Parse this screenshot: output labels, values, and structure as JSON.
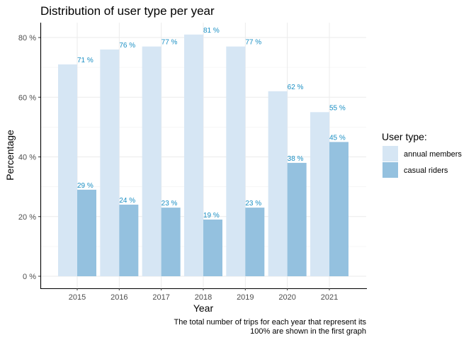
{
  "chart_data": {
    "type": "bar",
    "title": "Distribution of user type per year",
    "xlabel": "Year",
    "ylabel": "Percentage",
    "categories": [
      "2015",
      "2016",
      "2017",
      "2018",
      "2019",
      "2020",
      "2021"
    ],
    "series": [
      {
        "name": "annual members",
        "values": [
          71,
          76,
          77,
          81,
          77,
          62,
          55
        ],
        "labels": [
          "71 %",
          "76 %",
          "77 %",
          "81 %",
          "77 %",
          "62 %",
          "55 %"
        ],
        "color": "#d6e6f4"
      },
      {
        "name": "casual riders",
        "values": [
          29,
          24,
          23,
          19,
          23,
          38,
          45
        ],
        "labels": [
          "29 %",
          "24 %",
          "23 %",
          "19 %",
          "23 %",
          "38 %",
          "45 %"
        ],
        "color": "#94c1df"
      }
    ],
    "ylim": [
      0,
      85
    ],
    "yticks": [
      0,
      20,
      40,
      60,
      80
    ],
    "ytick_labels": [
      "0 %",
      "20 %",
      "40 %",
      "60 %",
      "80 %"
    ],
    "grid": true,
    "legend_title": "User type:",
    "legend_position": "right",
    "data_label_color": "#1a8fc4",
    "caption_lines": [
      "The total number of trips for each year that represent its",
      "100% are shown in the first graph"
    ]
  }
}
